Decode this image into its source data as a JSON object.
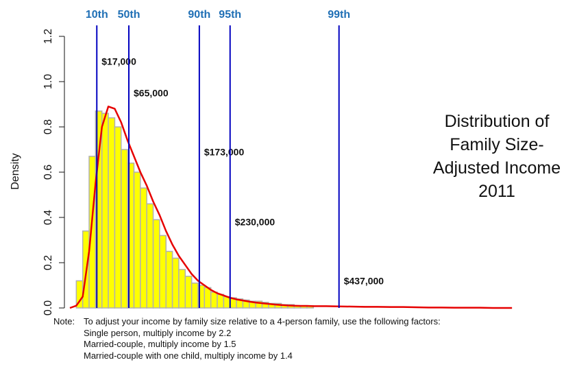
{
  "chart_data": {
    "type": "histogram",
    "title_lines": [
      "Distribution of",
      "Family Size-",
      "Adjusted Income",
      "2011"
    ],
    "ylabel": "Density",
    "ylim": [
      0,
      1.2
    ],
    "yticks": [
      "0.0",
      "0.2",
      "0.4",
      "0.6",
      "0.8",
      "1.0",
      "1.2"
    ],
    "bars": [
      0.12,
      0.34,
      0.67,
      0.87,
      0.86,
      0.84,
      0.8,
      0.7,
      0.64,
      0.6,
      0.53,
      0.46,
      0.39,
      0.32,
      0.25,
      0.22,
      0.17,
      0.14,
      0.11,
      0.1,
      0.09,
      0.07,
      0.06,
      0.05,
      0.045,
      0.04,
      0.035,
      0.03,
      0.03,
      0.025,
      0.02,
      0.02,
      0.015,
      0.015,
      0.01,
      0.01,
      0.01
    ],
    "density_curve": [
      [
        0,
        0.0
      ],
      [
        1,
        0.01
      ],
      [
        2,
        0.05
      ],
      [
        3,
        0.25
      ],
      [
        4,
        0.55
      ],
      [
        5,
        0.8
      ],
      [
        6,
        0.89
      ],
      [
        7,
        0.88
      ],
      [
        8,
        0.82
      ],
      [
        9,
        0.74
      ],
      [
        10,
        0.67
      ],
      [
        11,
        0.6
      ],
      [
        12,
        0.54
      ],
      [
        13,
        0.47
      ],
      [
        14,
        0.41
      ],
      [
        15,
        0.34
      ],
      [
        16,
        0.28
      ],
      [
        17,
        0.23
      ],
      [
        18,
        0.19
      ],
      [
        19,
        0.15
      ],
      [
        20,
        0.12
      ],
      [
        21,
        0.1
      ],
      [
        22,
        0.08
      ],
      [
        23,
        0.065
      ],
      [
        24,
        0.055
      ],
      [
        25,
        0.045
      ],
      [
        26,
        0.038
      ],
      [
        27,
        0.033
      ],
      [
        28,
        0.028
      ],
      [
        29,
        0.024
      ],
      [
        30,
        0.021
      ],
      [
        31,
        0.018
      ],
      [
        32,
        0.015
      ],
      [
        33,
        0.013
      ],
      [
        34,
        0.011
      ],
      [
        35,
        0.01
      ],
      [
        36,
        0.009
      ],
      [
        37,
        0.009
      ],
      [
        38,
        0.008
      ],
      [
        40,
        0.008
      ],
      [
        42,
        0.007
      ],
      [
        44,
        0.006
      ],
      [
        46,
        0.005
      ],
      [
        48,
        0.005
      ],
      [
        50,
        0.004
      ],
      [
        52,
        0.004
      ],
      [
        54,
        0.003
      ],
      [
        56,
        0.002
      ],
      [
        58,
        0.002
      ],
      [
        60,
        0.001
      ],
      [
        62,
        0.001
      ],
      [
        64,
        0.001
      ],
      [
        66,
        0.0
      ],
      [
        69,
        0.0
      ]
    ],
    "percentiles": [
      {
        "label": "10th",
        "x": 4.2,
        "value": "$17,000",
        "value_y": 1.09
      },
      {
        "label": "50th",
        "x": 9.2,
        "value": "$65,000",
        "value_y": 0.95
      },
      {
        "label": "90th",
        "x": 20.2,
        "value": "$173,000",
        "value_y": 0.69
      },
      {
        "label": "95th",
        "x": 25.0,
        "value": "$230,000",
        "value_y": 0.38
      },
      {
        "label": "99th",
        "x": 42.0,
        "value": "$437,000",
        "value_y": 0.12
      }
    ],
    "colors": {
      "bar_fill": "#ffff00",
      "bar_stroke": "#b0b0b0",
      "curve": "#e60000",
      "percentile_line": "#0000c0",
      "percentile_label": "#1f6fb5"
    }
  },
  "note": {
    "head": "Note:",
    "lines": [
      "To adjust your income by family size relative to a 4-person family, use the following factors:",
      "Single person, multiply income by 2.2",
      "Married-couple, multiply income by 1.5",
      "Married-couple with one child, multiply income by 1.4"
    ]
  }
}
